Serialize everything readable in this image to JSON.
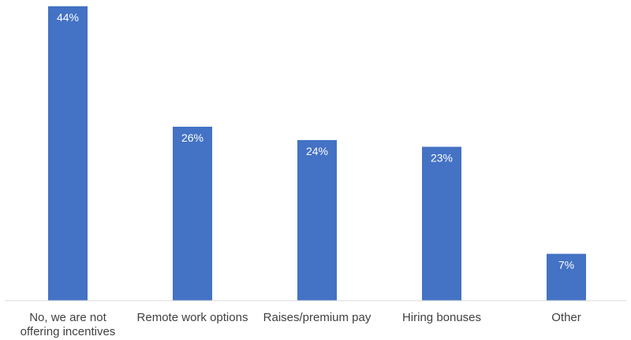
{
  "chart_data": {
    "type": "bar",
    "categories": [
      [
        "No, we are not",
        "offering incentives"
      ],
      [
        "Remote work options"
      ],
      [
        "Raises/premium pay"
      ],
      [
        "Hiring bonuses"
      ],
      [
        "Other"
      ]
    ],
    "values": [
      44,
      26,
      24,
      23,
      7
    ],
    "data_labels": [
      "44%",
      "26%",
      "24%",
      "23%",
      "7%"
    ],
    "title": "",
    "xlabel": "",
    "ylabel": "",
    "ylim": [
      0,
      44
    ],
    "grid": false,
    "legend": "none",
    "bar_color": "#4472C4",
    "axis_color": "#D9D9D9"
  }
}
